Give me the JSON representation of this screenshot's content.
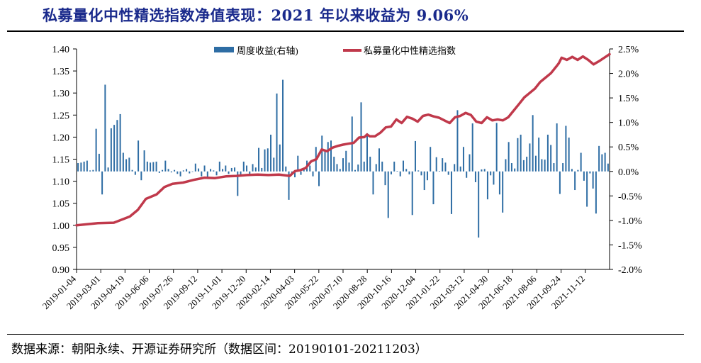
{
  "title": "私募量化中性精选指数净值表现：2021 年以来收益为 9.06%",
  "source": "数据来源：朝阳永续、开源证券研究所（数据区间：20190101-20211203）",
  "colors": {
    "bar": "#2e6da4",
    "line": "#c0394b",
    "title": "#1a2a8c"
  },
  "chart_data": {
    "type": "bar+line",
    "legend": {
      "position": "top-center",
      "bar_label": "周度收益(右轴)",
      "line_label": "私募量化中性精选指数"
    },
    "left_axis": {
      "ylim": [
        0.9,
        1.4
      ],
      "ticks": [
        "0.90",
        "0.95",
        "1.00",
        "1.05",
        "1.10",
        "1.15",
        "1.20",
        "1.25",
        "1.30",
        "1.35",
        "1.40"
      ]
    },
    "right_axis": {
      "ylim": [
        -2.0,
        2.5
      ],
      "ticks": [
        "-2.0%",
        "-1.5%",
        "-1.0%",
        "-0.5%",
        "0.0%",
        "0.5%",
        "1.0%",
        "1.5%",
        "2.0%",
        "2.5%"
      ]
    },
    "x_tick_labels": [
      "2019-01-04",
      "2019-03-01",
      "2019-04-19",
      "2019-06-06",
      "2019-07-26",
      "2019-09-12",
      "2019-11-01",
      "2019-12-20",
      "2020-02-14",
      "2020-04-03",
      "2020-05-22",
      "2020-07-10",
      "2020-08-28",
      "2020-10-16",
      "2020-12-04",
      "2021-01-22",
      "2021-03-12",
      "2021-04-30",
      "2021-06-18",
      "2021-08-06",
      "2021-09-24",
      "2021-11-12"
    ],
    "series": [
      {
        "name": "周度收益(右轴)",
        "type": "bar",
        "axis": "right",
        "values": [
          0.17,
          0.18,
          0.2,
          0.22,
          0.02,
          0.03,
          0.87,
          0.36,
          -0.47,
          1.77,
          0.08,
          0.88,
          0.95,
          1.05,
          1.17,
          0.38,
          0.25,
          0.28,
          0.03,
          -0.07,
          0.63,
          -0.18,
          0.43,
          0.2,
          0.18,
          0.19,
          0.2,
          -0.03,
          0.03,
          0.22,
          0.05,
          -0.02,
          0.03,
          -0.05,
          -0.1,
          0.02,
          0.05,
          -0.04,
          -0.01,
          0.16,
          0.06,
          -0.1,
          0.12,
          -0.15,
          0.05,
          0.02,
          -0.08,
          0.2,
          0.05,
          0.12,
          -0.05,
          0.07,
          0.08,
          -0.5,
          -0.1,
          0.2,
          0.12,
          -0.05,
          0.15,
          0.08,
          0.48,
          0.07,
          0.45,
          0.47,
          0.75,
          0.28,
          1.59,
          0.55,
          1.87,
          0.1,
          -0.58,
          -0.05,
          -0.12,
          0.32,
          -0.07,
          0.07,
          0.22,
          0.12,
          -0.1,
          0.5,
          -0.3,
          0.73,
          0.4,
          0.6,
          0.63,
          0.3,
          0.15,
          0.05,
          0.27,
          0.42,
          0.18,
          1.12,
          0.03,
          0.14,
          1.41,
          0.2,
          0.78,
          0.3,
          -0.47,
          0.15,
          0.47,
          0.2,
          -0.28,
          -0.95,
          -0.06,
          0.2,
          0.01,
          -0.1,
          0.22,
          0.05,
          -0.06,
          -0.89,
          0.62,
          0.02,
          -0.08,
          -0.38,
          -0.18,
          0.5,
          -0.67,
          0.29,
          0.01,
          0.27,
          0.18,
          -0.07,
          -0.87,
          0.15,
          1.25,
          0.1,
          0.5,
          -0.13,
          0.35,
          0.98,
          -0.22,
          -1.35,
          0.04,
          0.05,
          -0.57,
          -0.08,
          -0.27,
          0.99,
          -0.47,
          -0.84,
          0.25,
          0.6,
          0.17,
          0.06,
          0.68,
          0.75,
          0.23,
          0.3,
          0.57,
          1.15,
          0.32,
          0.69,
          0.25,
          0.24,
          0.75,
          0.54,
          0.17,
          0.98,
          -0.46,
          0.17,
          0.93,
          0.69,
          0.05,
          -0.38,
          0.03,
          0.38,
          -0.19,
          -0.72,
          -0.04,
          -0.35,
          -0.86,
          0.52,
          0.35,
          0.38,
          0.16
        ],
        "ylim": [
          -2.0,
          2.5
        ]
      },
      {
        "name": "私募量化中性精选指数",
        "type": "line",
        "axis": "left",
        "x_fraction": [
          0,
          0.04,
          0.07,
          0.1,
          0.115,
          0.13,
          0.15,
          0.165,
          0.18,
          0.2,
          0.22,
          0.24,
          0.26,
          0.28,
          0.3,
          0.32,
          0.34,
          0.36,
          0.38,
          0.4,
          0.41,
          0.42,
          0.43,
          0.44,
          0.45,
          0.46,
          0.47,
          0.48,
          0.49,
          0.5,
          0.51,
          0.52,
          0.53,
          0.54,
          0.545,
          0.55,
          0.56,
          0.57,
          0.58,
          0.59,
          0.6,
          0.61,
          0.62,
          0.63,
          0.64,
          0.65,
          0.66,
          0.67,
          0.68,
          0.69,
          0.7,
          0.71,
          0.72,
          0.73,
          0.74,
          0.75,
          0.76,
          0.77,
          0.78,
          0.79,
          0.8,
          0.81,
          0.82,
          0.83,
          0.84,
          0.85,
          0.86,
          0.87,
          0.88,
          0.89,
          0.9,
          0.905,
          0.91,
          0.92,
          0.93,
          0.94,
          0.95,
          0.96,
          0.97,
          0.98,
          0.99,
          1.0
        ],
        "values": [
          1.0,
          1.005,
          1.006,
          1.02,
          1.035,
          1.06,
          1.07,
          1.087,
          1.094,
          1.097,
          1.103,
          1.108,
          1.107,
          1.111,
          1.112,
          1.114,
          1.115,
          1.114,
          1.115,
          1.112,
          1.123,
          1.125,
          1.13,
          1.145,
          1.15,
          1.172,
          1.168,
          1.176,
          1.18,
          1.183,
          1.185,
          1.187,
          1.199,
          1.2,
          1.206,
          1.202,
          1.202,
          1.21,
          1.222,
          1.224,
          1.24,
          1.232,
          1.246,
          1.242,
          1.235,
          1.248,
          1.251,
          1.247,
          1.244,
          1.238,
          1.232,
          1.245,
          1.248,
          1.255,
          1.25,
          1.235,
          1.232,
          1.245,
          1.238,
          1.24,
          1.238,
          1.245,
          1.26,
          1.275,
          1.29,
          1.3,
          1.31,
          1.325,
          1.335,
          1.345,
          1.36,
          1.368,
          1.38,
          1.375,
          1.382,
          1.375,
          1.383,
          1.375,
          1.365,
          1.372,
          1.38,
          1.388
        ],
        "ylim": [
          0.9,
          1.4
        ]
      }
    ]
  }
}
